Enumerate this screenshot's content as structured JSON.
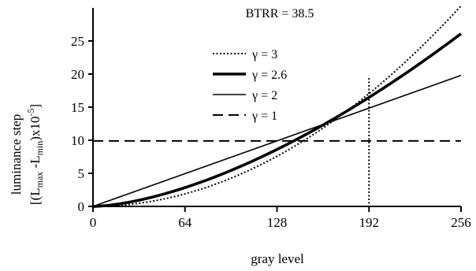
{
  "chart_data": {
    "type": "line",
    "annotation": "BTRR = 38.5",
    "xlabel": "gray level",
    "ylabel_line1": "luminance step",
    "ylabel_line2": {
      "open": "[(L",
      "sub_max": "max",
      "minus": " -L",
      "sub_min": "min",
      "close": ")x10",
      "sup_exp": "-5",
      "end": "]"
    },
    "xlim": [
      0,
      256
    ],
    "ylim": [
      0,
      30
    ],
    "xticks": [
      0,
      64,
      128,
      192,
      256
    ],
    "xtick_labels": [
      "0",
      "64",
      "128",
      "192",
      "256"
    ],
    "yticks": [
      0,
      5,
      10,
      15,
      20,
      25
    ],
    "ytick_labels": [
      "0",
      "5",
      "10",
      "15",
      "20",
      "25"
    ],
    "vline": {
      "x": 192,
      "style": "dotted"
    },
    "legend_position": "upper-middle",
    "series": [
      {
        "name": "γ = 3",
        "style": "dotted",
        "gamma": 3,
        "x": [
          0,
          64,
          128,
          160,
          192,
          224,
          256
        ],
        "values": [
          0.0,
          2.6,
          9.1,
          13.3,
          17.8,
          23.3,
          30.3
        ]
      },
      {
        "name": "γ = 2.6",
        "style": "thick",
        "gamma": 2.6,
        "x": [
          0,
          64,
          128,
          160,
          192,
          224,
          256
        ],
        "values": [
          0.0,
          3.3,
          9.5,
          13.2,
          17.2,
          21.5,
          26.1
        ]
      },
      {
        "name": "γ = 2",
        "style": "solid",
        "gamma": 2,
        "x": [
          0,
          64,
          128,
          160,
          192,
          224,
          256
        ],
        "values": [
          0.0,
          5.0,
          10.0,
          12.5,
          15.0,
          17.5,
          19.8
        ]
      },
      {
        "name": "γ = 1",
        "style": "dashed",
        "gamma": 1,
        "x": [
          0,
          64,
          128,
          160,
          192,
          224,
          256
        ],
        "values": [
          9.9,
          9.9,
          9.9,
          9.9,
          9.9,
          9.9,
          9.9
        ]
      }
    ]
  }
}
